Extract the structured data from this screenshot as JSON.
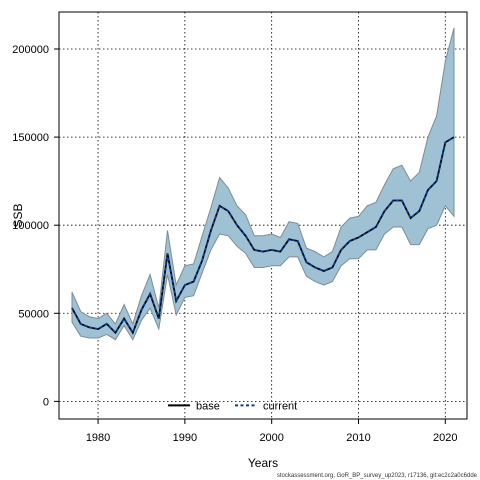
{
  "chart_data": {
    "type": "line",
    "title": "",
    "xlabel": "Years",
    "ylabel": "SSB",
    "xlim": [
      1975.5,
      2022.5
    ],
    "ylim": [
      -10000,
      221000
    ],
    "xticks": [
      1980,
      1990,
      2000,
      2010,
      2020
    ],
    "yticks": [
      0,
      50000,
      100000,
      150000,
      200000
    ],
    "grid": true,
    "legend_position": "bottom-center",
    "x": [
      1977,
      1978,
      1979,
      1980,
      1981,
      1982,
      1983,
      1984,
      1985,
      1986,
      1987,
      1988,
      1989,
      1990,
      1991,
      1992,
      1993,
      1994,
      1995,
      1996,
      1997,
      1998,
      1999,
      2000,
      2001,
      2002,
      2003,
      2004,
      2005,
      2006,
      2007,
      2008,
      2009,
      2010,
      2011,
      2012,
      2013,
      2014,
      2015,
      2016,
      2017,
      2018,
      2019,
      2020,
      2021
    ],
    "series": [
      {
        "name": "base",
        "color": "#000000",
        "style": "solid",
        "values": [
          53000,
          44000,
          42000,
          41000,
          44000,
          39000,
          47000,
          39000,
          52000,
          61000,
          47000,
          84000,
          57000,
          66000,
          68000,
          80000,
          97000,
          111000,
          108000,
          100000,
          94000,
          86000,
          85000,
          86000,
          85000,
          92000,
          91000,
          79000,
          76000,
          74000,
          76000,
          86000,
          91000,
          93000,
          96000,
          99000,
          108000,
          114000,
          114000,
          104000,
          108000,
          120000,
          125000,
          147000,
          150000
        ]
      },
      {
        "name": "current",
        "color": "#0b3d91",
        "style": "dashed",
        "values": [
          53000,
          44000,
          42000,
          41000,
          44000,
          39000,
          47000,
          39000,
          52000,
          61000,
          47000,
          84000,
          57000,
          66000,
          68000,
          80000,
          97000,
          111000,
          108000,
          100000,
          94000,
          86000,
          85000,
          86000,
          85000,
          92000,
          91000,
          79000,
          76000,
          74000,
          76000,
          86000,
          91000,
          93000,
          96000,
          99000,
          108000,
          114000,
          114000,
          104000,
          108000,
          120000,
          125000,
          147000,
          150000
        ]
      }
    ],
    "band": {
      "color": "#9fc1d4",
      "lower": [
        45000,
        37000,
        36000,
        36000,
        38000,
        35000,
        43000,
        35000,
        46000,
        53000,
        41000,
        72000,
        49000,
        59000,
        60000,
        73000,
        86000,
        95000,
        94000,
        88000,
        84000,
        76000,
        76000,
        77000,
        77000,
        82000,
        82000,
        71000,
        68000,
        66000,
        68000,
        77000,
        81000,
        81000,
        86000,
        86000,
        95000,
        99000,
        99000,
        89000,
        89000,
        98000,
        100000,
        111000,
        105000
      ],
      "upper": [
        62000,
        51000,
        48000,
        47000,
        50000,
        44000,
        55000,
        44000,
        60000,
        72000,
        53000,
        97000,
        66000,
        77000,
        78000,
        94000,
        110000,
        127000,
        121000,
        111000,
        106000,
        94000,
        94000,
        95000,
        93000,
        102000,
        101000,
        87000,
        85000,
        82000,
        85000,
        99000,
        104000,
        105000,
        111000,
        113000,
        123000,
        132000,
        134000,
        125000,
        130000,
        150000,
        162000,
        193000,
        212000
      ]
    },
    "footer": "stockassessment.org, GoR_BP_survey_up2023, r17136, git:ec2c2a0c6dde"
  }
}
